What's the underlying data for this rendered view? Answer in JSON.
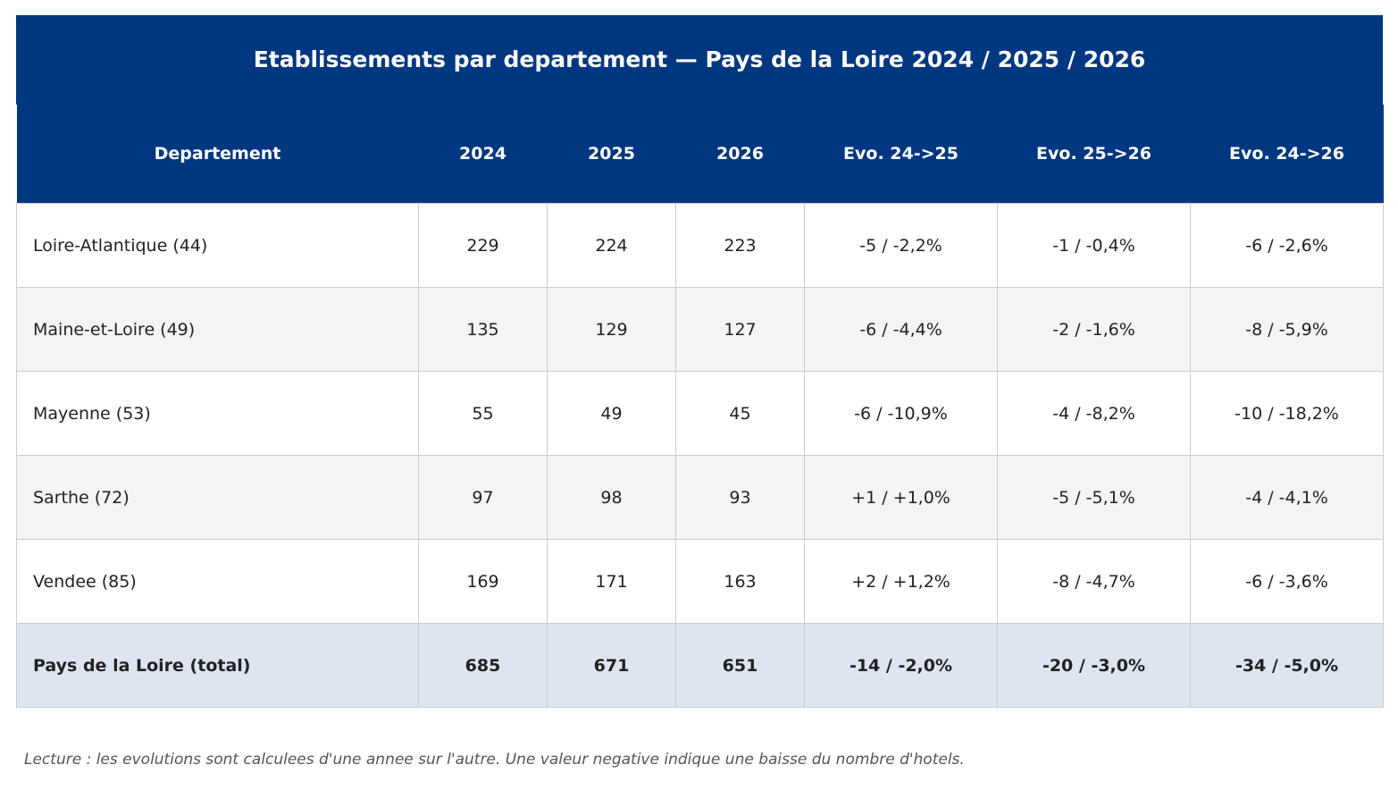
{
  "title": "Etablissements par departement — Pays de la Loire 2024 / 2025 / 2026",
  "table": {
    "header": [
      "Departement",
      "2024",
      "2025",
      "2026",
      "Evo. 24->25",
      "Evo. 25->26",
      "Evo. 24->26"
    ],
    "rows": [
      [
        "Loire-Atlantique (44)",
        "229",
        "224",
        "223",
        "-5 / -2,2%",
        "-1 / -0,4%",
        "-6 / -2,6%"
      ],
      [
        "Maine-et-Loire (49)",
        "135",
        "129",
        "127",
        "-6 / -4,4%",
        "-2 / -1,6%",
        "-8 / -5,9%"
      ],
      [
        "Mayenne (53)",
        "55",
        "49",
        "45",
        "-6 / -10,9%",
        "-4 / -8,2%",
        "-10 / -18,2%"
      ],
      [
        "Sarthe (72)",
        "97",
        "98",
        "93",
        "+1 / +1,0%",
        "-5 / -5,1%",
        "-4 / -4,1%"
      ],
      [
        "Vendee (85)",
        "169",
        "171",
        "163",
        "+2 / +1,2%",
        "-8 / -4,7%",
        "-6 / -3,6%"
      ]
    ],
    "total": [
      "Pays de la Loire (total)",
      "685",
      "671",
      "651",
      "-14 / -2,0%",
      "-20 / -3,0%",
      "-34 / -5,0%"
    ]
  },
  "note": "Lecture : les evolutions sont calculees d'une annee sur l'autre. Une valeur negative indique une baisse du nombre d'hotels."
}
